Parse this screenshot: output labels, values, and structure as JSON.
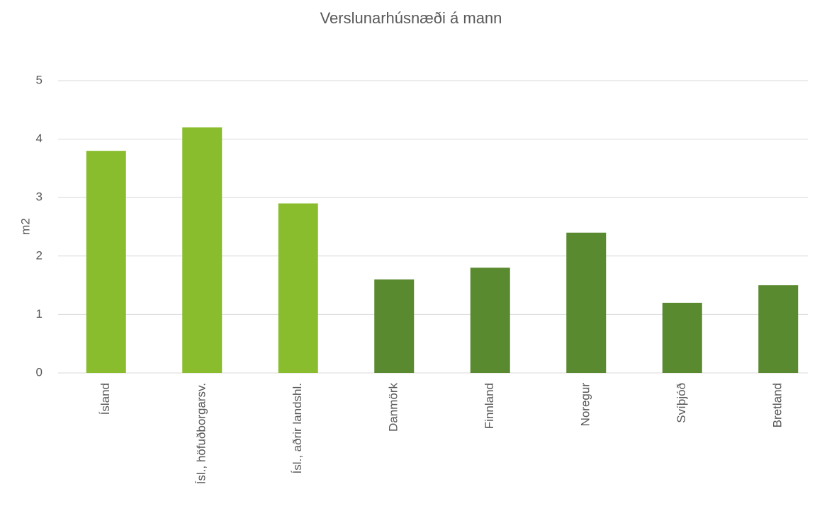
{
  "chart_data": {
    "type": "bar",
    "title": "Verslunarhúsnæði á mann",
    "y_label": "m2",
    "categories": [
      "Ísland",
      "Ísl., höfuðborgarsv.",
      "Ísl., aðrir landshl.",
      "Danmörk",
      "Finnland",
      "Noregur",
      "Svíþjóð",
      "Bretland"
    ],
    "values": [
      3.8,
      4.2,
      2.9,
      1.6,
      1.8,
      2.4,
      1.2,
      1.5
    ],
    "colors": [
      "#8abd2e",
      "#8abd2e",
      "#8abd2e",
      "#5a8a30",
      "#5a8a30",
      "#5a8a30",
      "#5a8a30",
      "#5a8a30"
    ],
    "ylim": [
      0,
      5
    ],
    "yticks": [
      0,
      1,
      2,
      3,
      4,
      5
    ],
    "grid": true
  }
}
